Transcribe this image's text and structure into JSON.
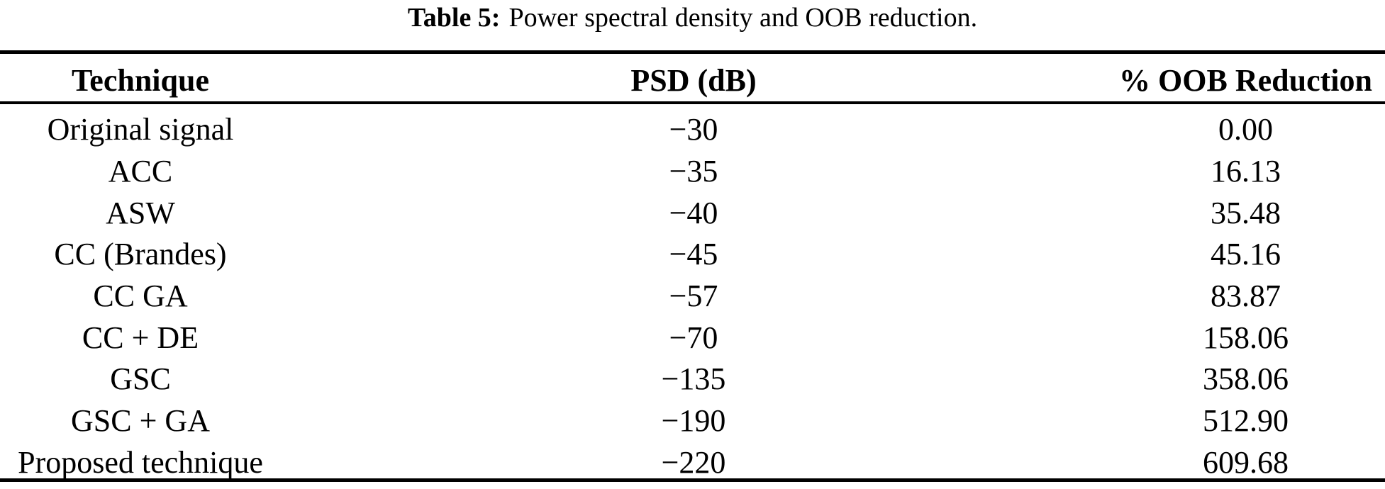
{
  "title": {
    "label": "Table 5:",
    "text": "Power spectral density and OOB reduction."
  },
  "table": {
    "columns": [
      "Technique",
      "PSD (dB)",
      "% OOB Reduction"
    ],
    "rows": [
      {
        "technique": "Original signal",
        "psd_db": "−30",
        "oob_reduction": "0.00"
      },
      {
        "technique": "ACC",
        "psd_db": "−35",
        "oob_reduction": "16.13"
      },
      {
        "technique": "ASW",
        "psd_db": "−40",
        "oob_reduction": "35.48"
      },
      {
        "technique": "CC (Brandes)",
        "psd_db": "−45",
        "oob_reduction": "45.16"
      },
      {
        "technique": "CC GA",
        "psd_db": "−57",
        "oob_reduction": "83.87"
      },
      {
        "technique": "CC + DE",
        "psd_db": "−70",
        "oob_reduction": "158.06"
      },
      {
        "technique": "GSC",
        "psd_db": "−135",
        "oob_reduction": "358.06"
      },
      {
        "technique": "GSC + GA",
        "psd_db": "−190",
        "oob_reduction": "512.90"
      },
      {
        "technique": "Proposed technique",
        "psd_db": "−220",
        "oob_reduction": "609.68"
      }
    ]
  },
  "chart_data": {
    "type": "table",
    "title": "Table 5: Power spectral density and OOB reduction.",
    "categories": [
      "Original signal",
      "ACC",
      "ASW",
      "CC (Brandes)",
      "CC GA",
      "CC + DE",
      "GSC",
      "GSC + GA",
      "Proposed technique"
    ],
    "series": [
      {
        "name": "PSD (dB)",
        "values": [
          -30,
          -35,
          -40,
          -45,
          -57,
          -70,
          -135,
          -190,
          -220
        ]
      },
      {
        "name": "% OOB Reduction",
        "values": [
          0.0,
          16.13,
          35.48,
          45.16,
          83.87,
          158.06,
          358.06,
          512.9,
          609.68
        ]
      }
    ],
    "colors": {
      "text": "#000000",
      "background": "#ffffff",
      "rule": "#000000"
    }
  }
}
